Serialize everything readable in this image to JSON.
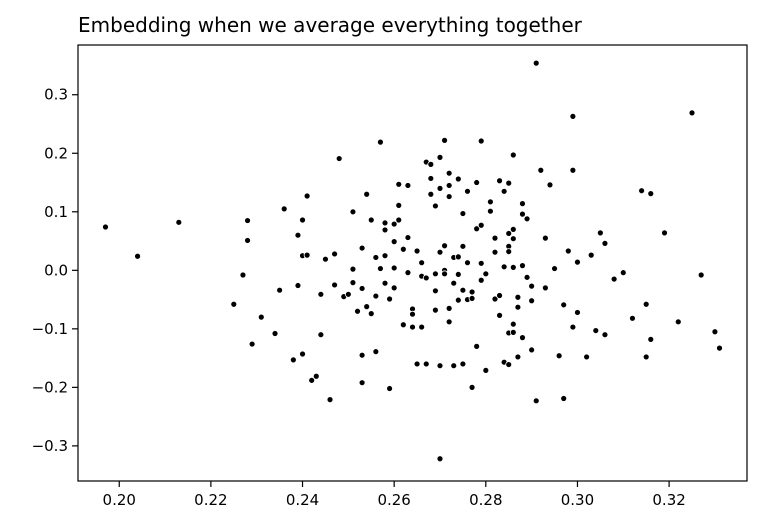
{
  "chart_data": {
    "type": "scatter",
    "title": "Embedding when we average everything together",
    "xlabel": "",
    "ylabel": "",
    "xlim": [
      0.191,
      0.337
    ],
    "ylim": [
      -0.36,
      0.385
    ],
    "xticks": [
      0.2,
      0.22,
      0.24,
      0.26,
      0.28,
      0.3,
      0.32
    ],
    "xtick_labels": [
      "0.20",
      "0.22",
      "0.24",
      "0.26",
      "0.28",
      "0.30",
      "0.32"
    ],
    "yticks": [
      -0.3,
      -0.2,
      -0.1,
      0.0,
      0.1,
      0.2,
      0.3
    ],
    "ytick_labels": [
      "−0.3",
      "−0.2",
      "−0.1",
      "0.0",
      "0.1",
      "0.2",
      "0.3"
    ],
    "grid": false,
    "marker_color": "#000000",
    "marker_edge_color": "#ffffff",
    "points": [
      [
        0.197,
        0.074
      ],
      [
        0.204,
        0.024
      ],
      [
        0.213,
        0.082
      ],
      [
        0.225,
        -0.058
      ],
      [
        0.227,
        -0.008
      ],
      [
        0.228,
        0.085
      ],
      [
        0.228,
        0.051
      ],
      [
        0.229,
        -0.126
      ],
      [
        0.231,
        -0.08
      ],
      [
        0.234,
        -0.108
      ],
      [
        0.235,
        -0.034
      ],
      [
        0.236,
        0.105
      ],
      [
        0.238,
        -0.153
      ],
      [
        0.239,
        0.06
      ],
      [
        0.239,
        -0.026
      ],
      [
        0.24,
        0.025
      ],
      [
        0.24,
        0.086
      ],
      [
        0.24,
        -0.143
      ],
      [
        0.241,
        0.127
      ],
      [
        0.241,
        0.026
      ],
      [
        0.242,
        -0.188
      ],
      [
        0.243,
        -0.181
      ],
      [
        0.244,
        -0.041
      ],
      [
        0.244,
        -0.11
      ],
      [
        0.245,
        0.019
      ],
      [
        0.246,
        -0.221
      ],
      [
        0.247,
        -0.025
      ],
      [
        0.247,
        0.028
      ],
      [
        0.248,
        0.191
      ],
      [
        0.249,
        -0.045
      ],
      [
        0.25,
        -0.041
      ],
      [
        0.251,
        0.1
      ],
      [
        0.251,
        0.002
      ],
      [
        0.251,
        -0.021
      ],
      [
        0.252,
        -0.07
      ],
      [
        0.253,
        -0.031
      ],
      [
        0.253,
        0.038
      ],
      [
        0.253,
        -0.145
      ],
      [
        0.253,
        -0.192
      ],
      [
        0.254,
        0.13
      ],
      [
        0.254,
        -0.062
      ],
      [
        0.255,
        -0.074
      ],
      [
        0.255,
        0.086
      ],
      [
        0.256,
        0.022
      ],
      [
        0.256,
        -0.139
      ],
      [
        0.256,
        -0.044
      ],
      [
        0.257,
        0.219
      ],
      [
        0.257,
        0.003
      ],
      [
        0.258,
        0.069
      ],
      [
        0.258,
        -0.022
      ],
      [
        0.258,
        0.081
      ],
      [
        0.258,
        0.025
      ],
      [
        0.259,
        -0.202
      ],
      [
        0.259,
        -0.049
      ],
      [
        0.26,
        0.079
      ],
      [
        0.26,
        0.049
      ],
      [
        0.26,
        0.004
      ],
      [
        0.26,
        -0.03
      ],
      [
        0.261,
        0.111
      ],
      [
        0.261,
        0.147
      ],
      [
        0.261,
        0.086
      ],
      [
        0.262,
        0.036
      ],
      [
        0.262,
        -0.093
      ],
      [
        0.263,
        0.056
      ],
      [
        0.263,
        -0.004
      ],
      [
        0.263,
        0.145
      ],
      [
        0.264,
        -0.066
      ],
      [
        0.264,
        -0.097
      ],
      [
        0.264,
        -0.075
      ],
      [
        0.265,
        0.033
      ],
      [
        0.265,
        -0.16
      ],
      [
        0.266,
        -0.097
      ],
      [
        0.266,
        0.013
      ],
      [
        0.266,
        -0.01
      ],
      [
        0.267,
        -0.16
      ],
      [
        0.267,
        0.185
      ],
      [
        0.267,
        -0.013
      ],
      [
        0.268,
        0.13
      ],
      [
        0.268,
        0.157
      ],
      [
        0.268,
        0.181
      ],
      [
        0.269,
        0.11
      ],
      [
        0.269,
        -0.006
      ],
      [
        0.269,
        -0.068
      ],
      [
        0.269,
        -0.035
      ],
      [
        0.27,
        0.193
      ],
      [
        0.27,
        0.14
      ],
      [
        0.27,
        0.031
      ],
      [
        0.27,
        -0.163
      ],
      [
        0.27,
        -0.322
      ],
      [
        0.271,
        0.222
      ],
      [
        0.271,
        0.042
      ],
      [
        0.271,
        0.0
      ],
      [
        0.271,
        -0.006
      ],
      [
        0.272,
        0.166
      ],
      [
        0.272,
        0.145
      ],
      [
        0.272,
        0.126
      ],
      [
        0.272,
        -0.065
      ],
      [
        0.272,
        -0.088
      ],
      [
        0.273,
        0.022
      ],
      [
        0.273,
        -0.022
      ],
      [
        0.273,
        -0.163
      ],
      [
        0.274,
        0.156
      ],
      [
        0.274,
        0.023
      ],
      [
        0.274,
        -0.007
      ],
      [
        0.274,
        -0.051
      ],
      [
        0.275,
        0.097
      ],
      [
        0.275,
        0.041
      ],
      [
        0.275,
        -0.16
      ],
      [
        0.275,
        -0.034
      ],
      [
        0.276,
        0.135
      ],
      [
        0.276,
        0.013
      ],
      [
        0.276,
        -0.05
      ],
      [
        0.277,
        -0.037
      ],
      [
        0.277,
        -0.2
      ],
      [
        0.277,
        -0.048
      ],
      [
        0.278,
        0.15
      ],
      [
        0.278,
        -0.13
      ],
      [
        0.278,
        0.071
      ],
      [
        0.279,
        0.221
      ],
      [
        0.279,
        -0.017
      ],
      [
        0.279,
        0.012
      ],
      [
        0.279,
        0.077
      ],
      [
        0.28,
        -0.171
      ],
      [
        0.28,
        -0.006
      ],
      [
        0.281,
        0.117
      ],
      [
        0.281,
        0.101
      ],
      [
        0.282,
        -0.049
      ],
      [
        0.282,
        0.031
      ],
      [
        0.282,
        0.055
      ],
      [
        0.283,
        -0.043
      ],
      [
        0.283,
        -0.077
      ],
      [
        0.283,
        0.153
      ],
      [
        0.284,
        0.135
      ],
      [
        0.284,
        -0.157
      ],
      [
        0.284,
        0.006
      ],
      [
        0.285,
        0.063
      ],
      [
        0.285,
        0.041
      ],
      [
        0.285,
        -0.107
      ],
      [
        0.285,
        0.149
      ],
      [
        0.285,
        0.032
      ],
      [
        0.285,
        -0.161
      ],
      [
        0.286,
        0.197
      ],
      [
        0.286,
        0.005
      ],
      [
        0.286,
        -0.092
      ],
      [
        0.286,
        0.054
      ],
      [
        0.286,
        -0.106
      ],
      [
        0.286,
        0.07
      ],
      [
        0.287,
        -0.063
      ],
      [
        0.287,
        -0.148
      ],
      [
        0.287,
        -0.046
      ],
      [
        0.288,
        0.008
      ],
      [
        0.288,
        0.096
      ],
      [
        0.288,
        0.114
      ],
      [
        0.288,
        -0.115
      ],
      [
        0.289,
        -0.012
      ],
      [
        0.289,
        0.088
      ],
      [
        0.29,
        -0.052
      ],
      [
        0.29,
        -0.136
      ],
      [
        0.29,
        -0.027
      ],
      [
        0.291,
        0.354
      ],
      [
        0.291,
        -0.223
      ],
      [
        0.292,
        0.171
      ],
      [
        0.293,
        0.055
      ],
      [
        0.293,
        -0.03
      ],
      [
        0.294,
        0.146
      ],
      [
        0.295,
        0.003
      ],
      [
        0.296,
        -0.146
      ],
      [
        0.297,
        -0.219
      ],
      [
        0.297,
        -0.059
      ],
      [
        0.298,
        0.033
      ],
      [
        0.299,
        -0.097
      ],
      [
        0.299,
        0.263
      ],
      [
        0.299,
        0.171
      ],
      [
        0.3,
        0.014
      ],
      [
        0.3,
        -0.072
      ],
      [
        0.302,
        -0.148
      ],
      [
        0.303,
        0.026
      ],
      [
        0.304,
        -0.103
      ],
      [
        0.305,
        0.064
      ],
      [
        0.306,
        0.046
      ],
      [
        0.306,
        -0.11
      ],
      [
        0.308,
        -0.015
      ],
      [
        0.31,
        -0.004
      ],
      [
        0.312,
        -0.082
      ],
      [
        0.314,
        0.136
      ],
      [
        0.315,
        -0.058
      ],
      [
        0.315,
        -0.148
      ],
      [
        0.316,
        0.131
      ],
      [
        0.316,
        -0.118
      ],
      [
        0.319,
        0.064
      ],
      [
        0.322,
        -0.088
      ],
      [
        0.325,
        0.269
      ],
      [
        0.327,
        -0.008
      ],
      [
        0.33,
        -0.105
      ],
      [
        0.331,
        -0.133
      ]
    ]
  }
}
